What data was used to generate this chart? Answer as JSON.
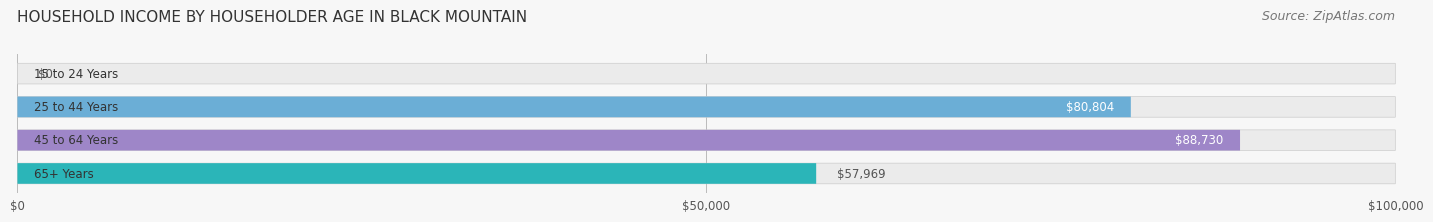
{
  "title": "HOUSEHOLD INCOME BY HOUSEHOLDER AGE IN BLACK MOUNTAIN",
  "source": "Source: ZipAtlas.com",
  "categories": [
    "15 to 24 Years",
    "25 to 44 Years",
    "45 to 64 Years",
    "65+ Years"
  ],
  "values": [
    0,
    80804,
    88730,
    57969
  ],
  "bar_colors": [
    "#f08080",
    "#6baed6",
    "#9e86c8",
    "#2bb5b8"
  ],
  "bg_colors": [
    "#f0f0f0",
    "#f0f0f0",
    "#f0f0f0",
    "#f0f0f0"
  ],
  "xmax": 100000,
  "xticks": [
    0,
    50000,
    100000
  ],
  "xtick_labels": [
    "$0",
    "$50,000",
    "$100,000"
  ],
  "value_labels": [
    "$0",
    "$80,804",
    "$88,730",
    "$57,969"
  ],
  "label_inside": [
    false,
    true,
    true,
    false
  ],
  "title_fontsize": 11,
  "source_fontsize": 9,
  "label_fontsize": 8.5,
  "category_fontsize": 8.5,
  "tick_fontsize": 8.5,
  "bar_height": 0.62,
  "background_color": "#f7f7f7"
}
